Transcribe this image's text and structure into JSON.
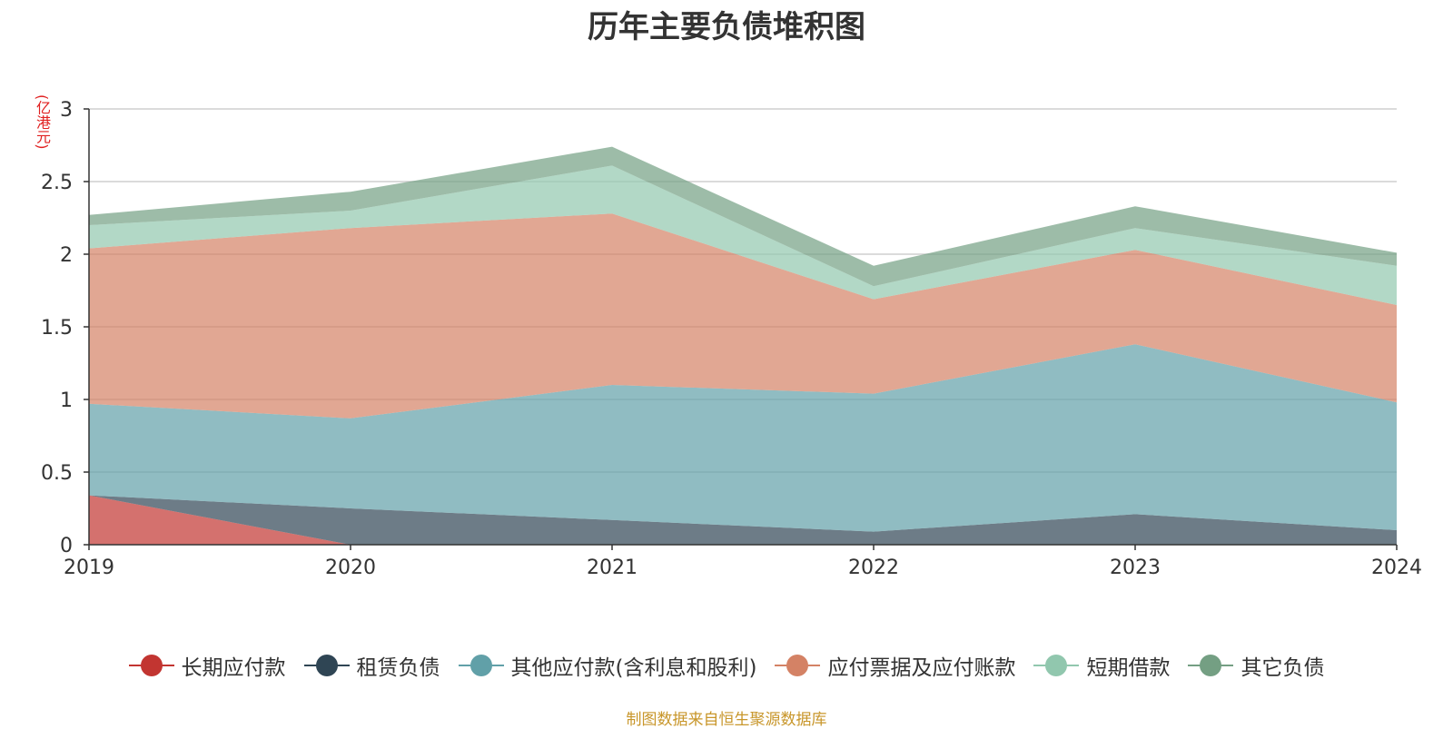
{
  "chart_data": {
    "type": "area",
    "stacked": true,
    "title": "历年主要负债堆积图",
    "unit_label": "(亿港元)",
    "x": [
      "2019",
      "2020",
      "2021",
      "2022",
      "2023",
      "2024"
    ],
    "y_ticks": [
      "0",
      "0.5",
      "1",
      "1.5",
      "2",
      "2.5",
      "3"
    ],
    "ylim": [
      0,
      3
    ],
    "grid": true,
    "legend_position": "bottom",
    "series": [
      {
        "name": "长期应付款",
        "color": "#c23531",
        "values": [
          0.34,
          0.0,
          0.0,
          0.0,
          0.0,
          0.0
        ]
      },
      {
        "name": "租赁负债",
        "color": "#2f4554",
        "values": [
          0.0,
          0.25,
          0.17,
          0.09,
          0.21,
          0.1
        ]
      },
      {
        "name": "其他应付款(含利息和股利)",
        "color": "#61a0a8",
        "values": [
          0.63,
          0.62,
          0.93,
          0.95,
          1.17,
          0.88
        ]
      },
      {
        "name": "应付票据及应付账款",
        "color": "#d48265",
        "values": [
          1.07,
          1.31,
          1.18,
          0.65,
          0.65,
          0.67
        ]
      },
      {
        "name": "短期借款",
        "color": "#91c7ae",
        "values": [
          0.16,
          0.12,
          0.33,
          0.09,
          0.15,
          0.27
        ]
      },
      {
        "name": "其它负债",
        "color": "#749f83",
        "values": [
          0.07,
          0.13,
          0.13,
          0.14,
          0.15,
          0.09
        ]
      }
    ]
  },
  "source": "制图数据来自恒生聚源数据库"
}
